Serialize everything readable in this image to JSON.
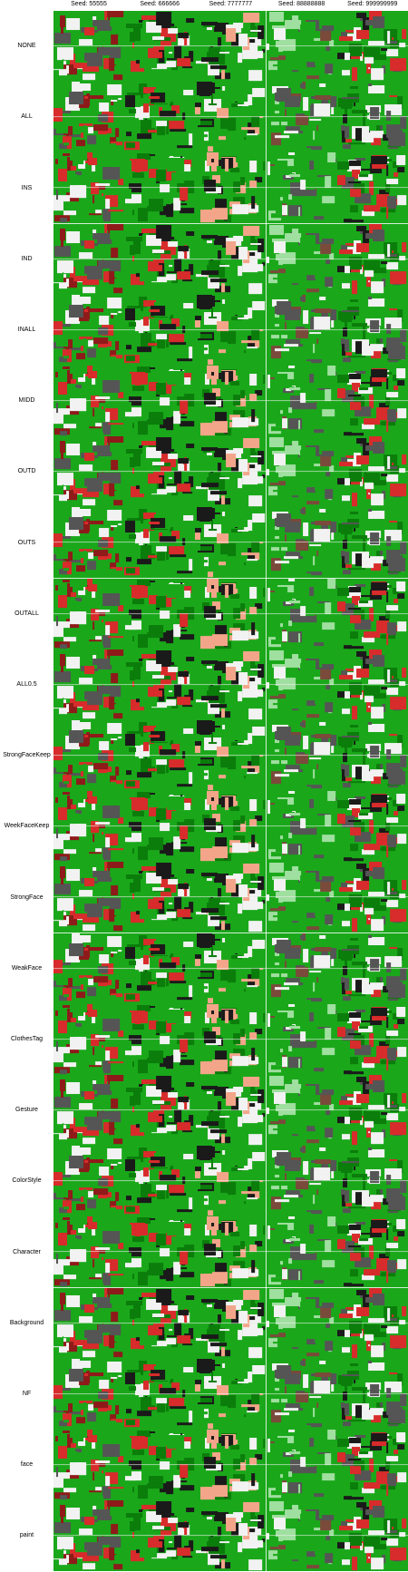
{
  "seeds": [
    "Seed: 55555",
    "Seed: 666666",
    "Seed: 7777777",
    "Seed: 88888888",
    "Seed: 999999999"
  ],
  "rows": [
    "NONE",
    "ALL",
    "INS",
    "IND",
    "INALL",
    "MIDD",
    "OUTD",
    "OUTS",
    "OUTALL",
    "ALL0.5",
    "StrongFaceKeep",
    "WeekFaceKeep",
    "StrongFace",
    "WeakFace",
    "ClothesTag",
    "Gesture",
    "ColorStyle",
    "Character",
    "Background",
    "NF",
    "face",
    "paint"
  ],
  "palette": {
    "background": "#ffffff",
    "green": "#1aa81a",
    "green_dark": "#0b7d0b",
    "red": "#d82b2b",
    "red_dark": "#8e1a1a",
    "white": "#f2f2f2",
    "skin": "#f3a58a",
    "gray": "#555555",
    "black": "#1a1a1a",
    "brown": "#7a4a3a",
    "pale_green": "#9fdf9f"
  }
}
